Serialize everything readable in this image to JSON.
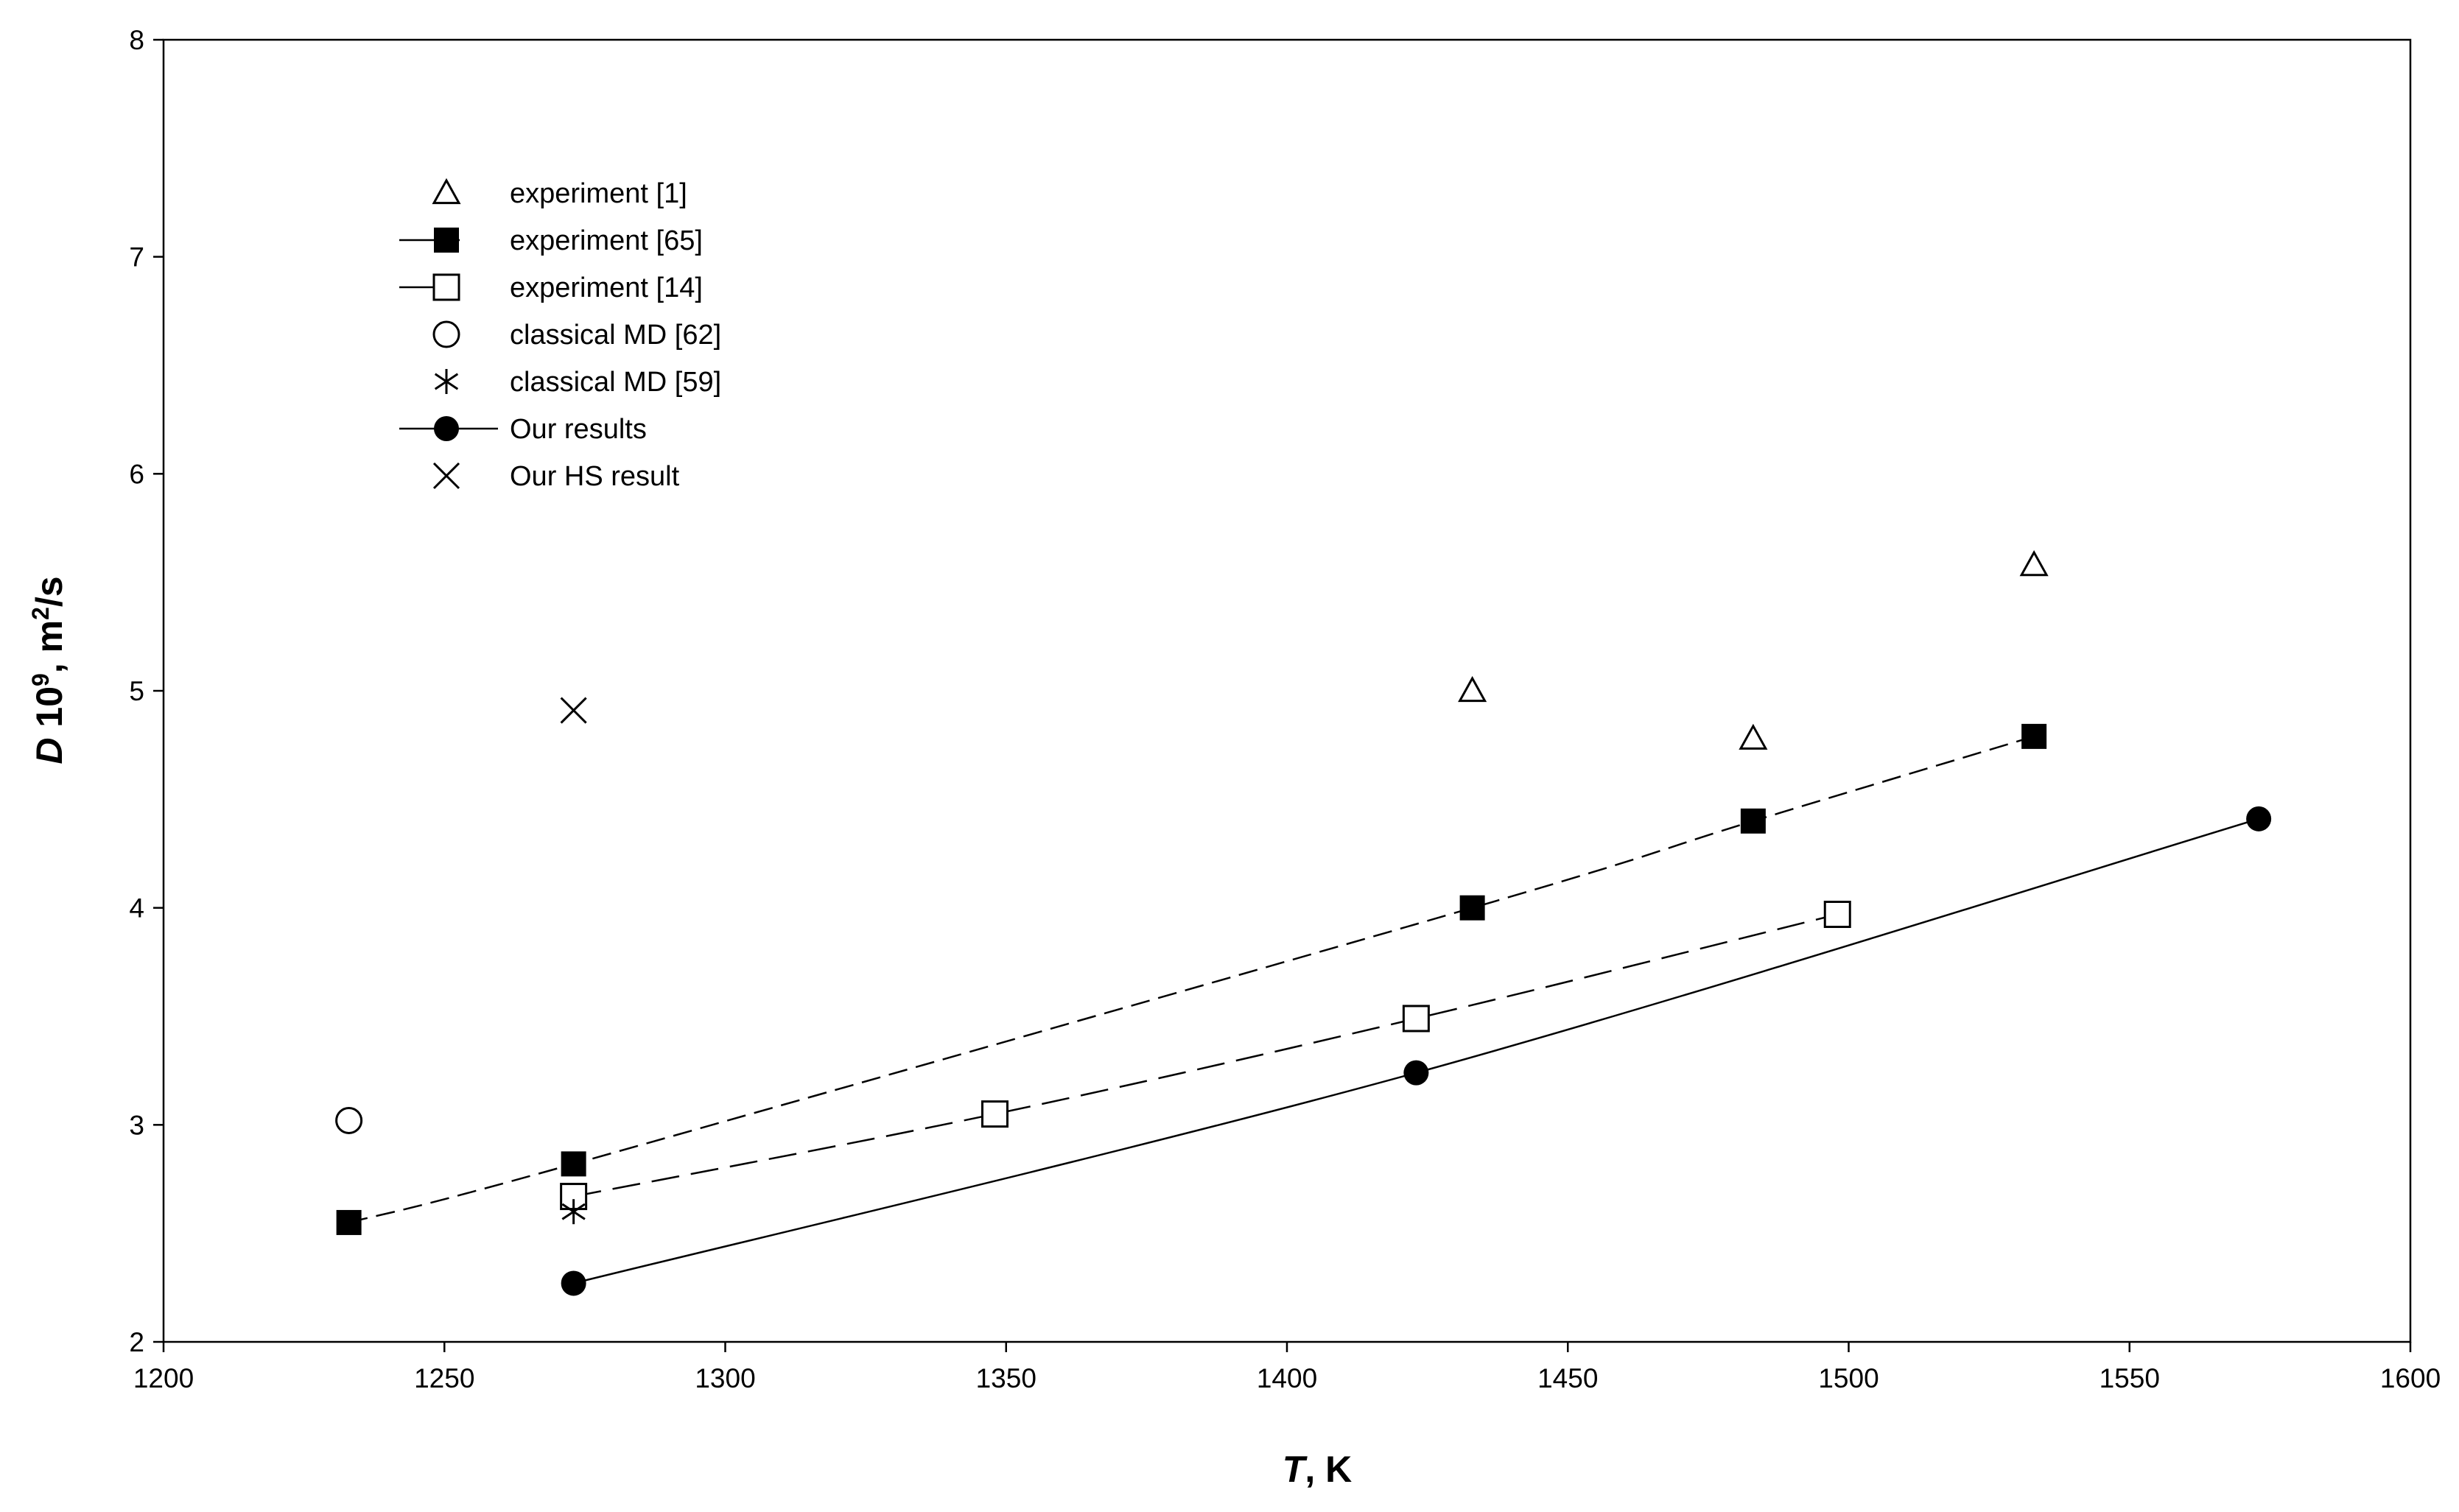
{
  "chart_data": {
    "type": "scatter",
    "xlabel_italic": "T",
    "xlabel_rest": ", K",
    "ylabel_italic": "D",
    "ylabel_rest_base": " 10",
    "ylabel_sup1": "9",
    "ylabel_mid": ", m",
    "ylabel_sup2": "2",
    "ylabel_end": "/s",
    "xlim": [
      1200,
      1600
    ],
    "ylim": [
      2,
      8
    ],
    "xticks": [
      1200,
      1250,
      1300,
      1350,
      1400,
      1450,
      1500,
      1550,
      1600
    ],
    "yticks": [
      2,
      3,
      4,
      5,
      6,
      7,
      8
    ],
    "grid": false,
    "legend_position": "top-left",
    "series": [
      {
        "name": "experiment [1]",
        "marker": "triangle-open",
        "line": "none",
        "x": [
          1433,
          1483,
          1533
        ],
        "y": [
          5.0,
          4.78,
          5.58
        ]
      },
      {
        "name": "experiment [65]",
        "marker": "square-filled",
        "line": "dashed",
        "x": [
          1233,
          1273,
          1433,
          1483,
          1533
        ],
        "y": [
          2.55,
          2.82,
          4.0,
          4.4,
          4.79
        ]
      },
      {
        "name": "experiment [14]",
        "marker": "square-open",
        "line": "long-dashed",
        "x": [
          1273,
          1348,
          1423,
          1498
        ],
        "y": [
          2.67,
          3.05,
          3.49,
          3.97
        ]
      },
      {
        "name": "classical MD [62]",
        "marker": "circle-open",
        "line": "none",
        "x": [
          1233
        ],
        "y": [
          3.02
        ]
      },
      {
        "name": "classical MD [59]",
        "marker": "asterisk",
        "line": "none",
        "x": [
          1273
        ],
        "y": [
          2.6
        ]
      },
      {
        "name": "Our results",
        "marker": "circle-filled",
        "line": "solid",
        "x": [
          1273,
          1423,
          1573
        ],
        "y": [
          2.27,
          3.24,
          4.41
        ]
      },
      {
        "name": "Our HS result",
        "marker": "x",
        "line": "none",
        "x": [
          1273
        ],
        "y": [
          4.91
        ]
      }
    ]
  }
}
